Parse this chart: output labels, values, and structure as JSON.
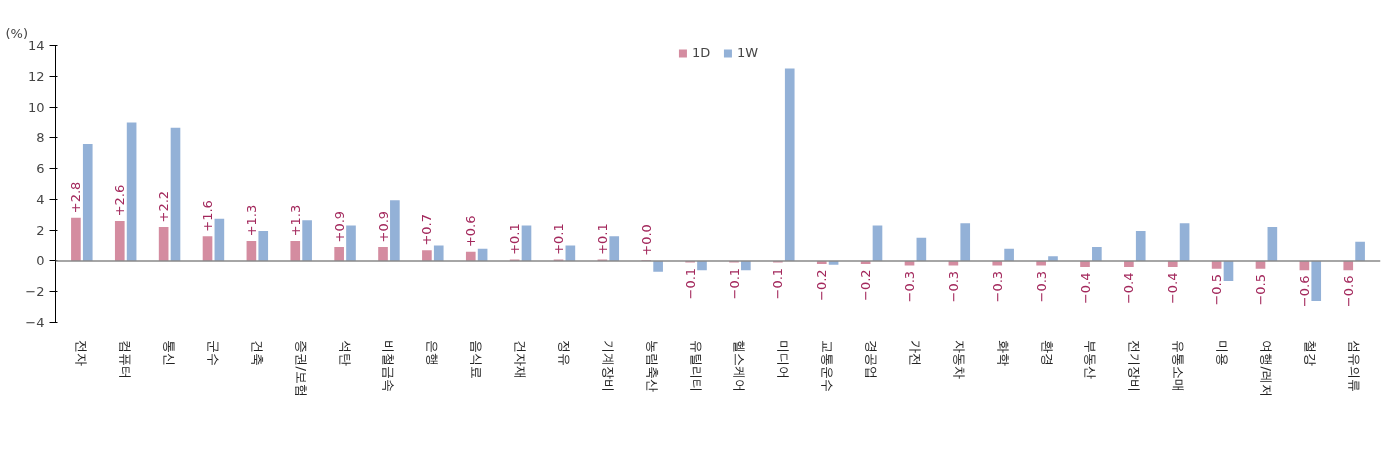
{
  "chart_data": {
    "type": "bar",
    "ylabel": "(%)",
    "categories": [
      "전자",
      "컴퓨터",
      "통신",
      "군수",
      "건축",
      "증권/보험",
      "석탄",
      "비철금속",
      "은행",
      "음식료",
      "건자재",
      "정유",
      "기계장비",
      "농림축산",
      "유틸리티",
      "헬스케어",
      "미디어",
      "교통운수",
      "경공업",
      "가전",
      "자동차",
      "화학",
      "환경",
      "부동산",
      "전기장비",
      "유통소매",
      "미용",
      "여행/레저",
      "철강",
      "섬유의류"
    ],
    "series": [
      {
        "name": "1D",
        "color": "#d48ca0",
        "values": [
          2.8,
          2.6,
          2.2,
          1.6,
          1.3,
          1.3,
          0.9,
          0.9,
          0.7,
          0.6,
          0.1,
          0.1,
          0.1,
          0.04,
          -0.1,
          -0.1,
          -0.1,
          -0.2,
          -0.2,
          -0.3,
          -0.3,
          -0.3,
          -0.3,
          -0.4,
          -0.4,
          -0.4,
          -0.5,
          -0.5,
          -0.6,
          -0.6
        ],
        "value_labels": [
          "+2.8",
          "+2.6",
          "+2.2",
          "+1.6",
          "+1.3",
          "+1.3",
          "+0.9",
          "+0.9",
          "+0.7",
          "+0.6",
          "+0.1",
          "+0.1",
          "+0.1",
          "+0.0",
          "−0.1",
          "−0.1",
          "−0.1",
          "−0.2",
          "−0.2",
          "−0.3",
          "−0.3",
          "−0.3",
          "−0.3",
          "−0.4",
          "−0.4",
          "−0.4",
          "−0.5",
          "−0.5",
          "−0.6",
          "−0.6"
        ]
      },
      {
        "name": "1W",
        "color": "#93b1d7",
        "values": [
          7.6,
          9.0,
          8.65,
          2.75,
          1.95,
          2.65,
          2.3,
          3.95,
          1.0,
          0.8,
          2.3,
          1.0,
          1.6,
          -0.7,
          -0.6,
          -0.6,
          12.5,
          -0.25,
          2.3,
          1.5,
          2.45,
          0.8,
          0.3,
          0.9,
          1.95,
          2.45,
          -1.3,
          2.2,
          -2.6,
          1.25
        ]
      }
    ],
    "ylim": [
      -4,
      14
    ],
    "yticks": [
      -4,
      -2,
      0,
      2,
      4,
      6,
      8,
      10,
      12,
      14
    ],
    "legend": "top"
  }
}
